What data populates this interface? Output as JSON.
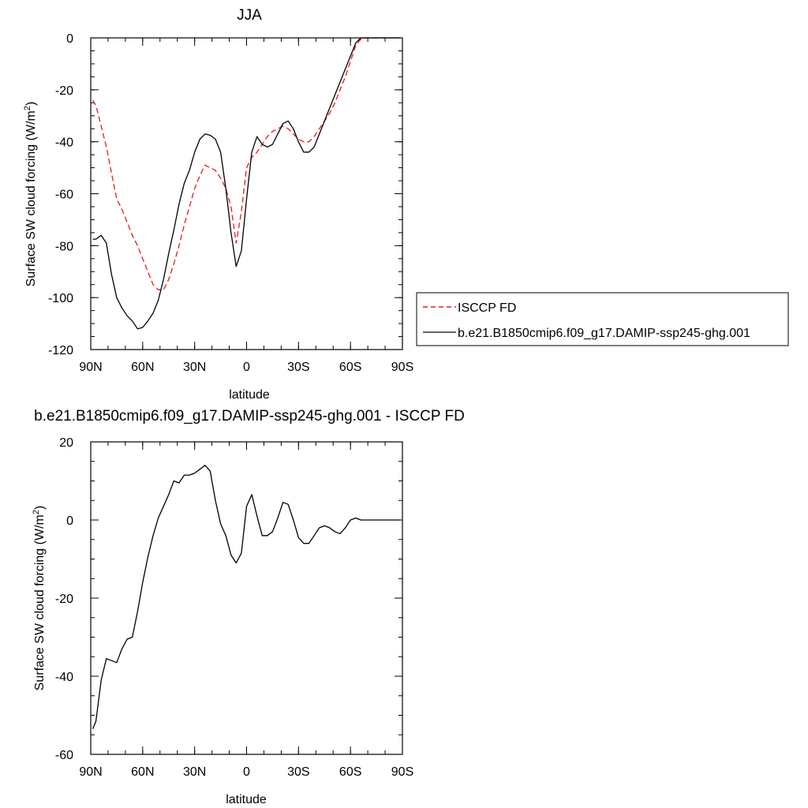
{
  "chart_data": [
    {
      "type": "line",
      "title": "JJA",
      "xlabel": "latitude",
      "ylabel": "Surface SW cloud forcing (W/m",
      "ylabel_sup": "2",
      "ylabel_tail": ")",
      "xlim": [
        90,
        -90
      ],
      "ylim": [
        -120,
        0
      ],
      "xticks": [
        90,
        60,
        30,
        0,
        -30,
        -60,
        -90
      ],
      "xtick_labels": [
        "90N",
        "60N",
        "30N",
        "0",
        "30S",
        "60S",
        "90S"
      ],
      "yticks": [
        -120,
        -100,
        -80,
        -60,
        -40,
        -20,
        0
      ],
      "ytick_labels": [
        "-120",
        "-100",
        "-80",
        "-60",
        "-40",
        "-20",
        "0"
      ],
      "grid": false,
      "legend": "right",
      "series": [
        {
          "name": "ISCCP FD",
          "color": "#e41a1c",
          "dash": "dashed",
          "x": [
            88.8,
            87,
            84,
            81,
            78,
            75,
            72,
            69,
            66,
            63,
            60,
            57,
            54,
            51,
            48,
            45,
            42,
            39,
            36,
            33,
            30,
            27,
            24,
            21,
            18,
            15,
            12,
            9,
            6,
            3,
            0,
            -3,
            -6,
            -9,
            -12,
            -15,
            -18,
            -21,
            -24,
            -27,
            -30,
            -33,
            -36,
            -39,
            -42,
            -45,
            -48,
            -51,
            -54,
            -57,
            -60,
            -63,
            -66,
            -69,
            -72,
            -75,
            -78,
            -81,
            -84,
            -87,
            -88.8
          ],
          "values": [
            -24,
            -26,
            -34,
            -42,
            -52,
            -62,
            -66,
            -71,
            -76,
            -80,
            -85,
            -90,
            -95,
            -97,
            -97,
            -93,
            -87,
            -80,
            -72,
            -65,
            -58,
            -53,
            -49,
            -50,
            -51,
            -54,
            -58,
            -65,
            -79,
            -67,
            -50,
            -46,
            -44,
            -41,
            -38,
            -36,
            -35,
            -34,
            -35,
            -37,
            -39,
            -40,
            -40,
            -38,
            -35,
            -32,
            -29,
            -25,
            -20,
            -15,
            -9,
            -3,
            -0.5,
            0,
            0,
            0,
            0,
            0,
            0,
            0,
            0
          ]
        },
        {
          "name": "b.e21.B1850cmip6.f09_g17.DAMIP-ssp245-ghg.001",
          "color": "#000000",
          "dash": "solid",
          "x": [
            88.8,
            87,
            84,
            81,
            78,
            75,
            72,
            69,
            66,
            63,
            60,
            57,
            54,
            51,
            48,
            45,
            42,
            39,
            36,
            33,
            30,
            27,
            24,
            21,
            18,
            15,
            12,
            9,
            6,
            3,
            0,
            -3,
            -6,
            -9,
            -12,
            -15,
            -18,
            -21,
            -24,
            -27,
            -30,
            -33,
            -36,
            -39,
            -42,
            -45,
            -48,
            -51,
            -54,
            -57,
            -60,
            -63,
            -66,
            -69,
            -72,
            -75,
            -78,
            -81,
            -84,
            -87,
            -88.8
          ],
          "values": [
            -77.5,
            -77.5,
            -76,
            -79,
            -91,
            -100,
            -104,
            -107,
            -109,
            -112,
            -111.5,
            -109,
            -106,
            -101,
            -93,
            -83,
            -74,
            -64,
            -56,
            -51,
            -44,
            -39,
            -37,
            -37.5,
            -39,
            -44,
            -58,
            -75,
            -88,
            -82,
            -62,
            -44,
            -38,
            -41,
            -42,
            -41,
            -37,
            -33,
            -32,
            -35,
            -40,
            -44,
            -44,
            -42,
            -37,
            -32,
            -27,
            -22,
            -17,
            -12,
            -7,
            -2,
            0,
            0,
            0,
            0,
            0,
            0,
            0,
            0,
            0
          ]
        }
      ],
      "legend_entries": [
        "ISCCP FD",
        "b.e21.B1850cmip6.f09_g17.DAMIP-ssp245-ghg.001"
      ]
    },
    {
      "type": "line",
      "title": "b.e21.B1850cmip6.f09_g17.DAMIP-ssp245-ghg.001 - ISCCP FD",
      "xlabel": "latitude",
      "ylabel": "Surface SW cloud forcing (W/m",
      "ylabel_sup": "2",
      "ylabel_tail": ")",
      "xlim": [
        90,
        -90
      ],
      "ylim": [
        -60,
        20
      ],
      "xticks": [
        90,
        60,
        30,
        0,
        -30,
        -60,
        -90
      ],
      "xtick_labels": [
        "90N",
        "60N",
        "30N",
        "0",
        "30S",
        "60S",
        "90S"
      ],
      "yticks": [
        -60,
        -40,
        -20,
        0,
        20
      ],
      "ytick_labels": [
        "-60",
        "-40",
        "-20",
        "0",
        "20"
      ],
      "grid": false,
      "series": [
        {
          "name": "",
          "color": "#000000",
          "dash": "solid",
          "x": [
            88.8,
            87,
            84,
            81,
            78,
            75,
            72,
            69,
            66,
            63,
            60,
            57,
            54,
            51,
            48,
            45,
            42,
            39,
            36,
            33,
            30,
            27,
            24,
            21,
            18,
            15,
            12,
            9,
            6,
            3,
            0,
            -3,
            -6,
            -9,
            -12,
            -15,
            -18,
            -21,
            -24,
            -27,
            -30,
            -33,
            -36,
            -39,
            -42,
            -45,
            -48,
            -51,
            -54,
            -57,
            -60,
            -63,
            -66,
            -69,
            -72,
            -75,
            -78,
            -81,
            -84,
            -87,
            -88.8
          ],
          "values": [
            -53.5,
            -51.5,
            -41,
            -35.5,
            -36,
            -36.5,
            -33,
            -30.5,
            -30,
            -23.5,
            -16,
            -9.5,
            -4,
            0.5,
            3.5,
            6.5,
            10,
            9.5,
            11.5,
            11.5,
            12,
            13,
            14,
            12.5,
            5,
            -1,
            -4,
            -9,
            -11,
            -8.5,
            3.5,
            6.5,
            1,
            -4,
            -4,
            -3,
            0.5,
            4.5,
            4,
            0,
            -4.5,
            -6,
            -6,
            -4,
            -2,
            -1.5,
            -2,
            -3,
            -3.5,
            -2,
            0,
            0.5,
            0,
            0,
            0,
            0,
            0,
            0,
            0,
            0,
            0
          ]
        }
      ]
    }
  ]
}
